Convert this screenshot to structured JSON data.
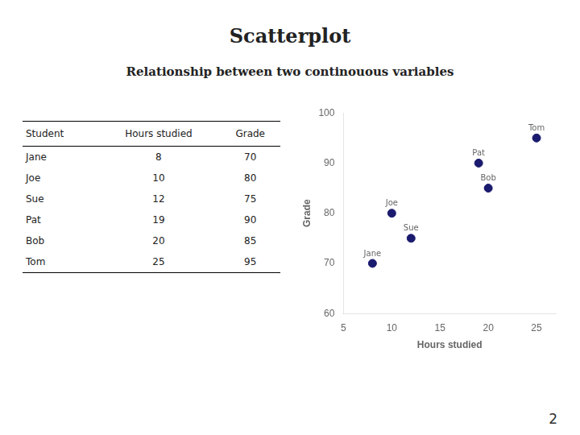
{
  "chart_data": {
    "type": "scatter",
    "title": "Scatterplot",
    "subtitle": "Relationship between two continouous variables",
    "x": [
      8,
      10,
      12,
      19,
      20,
      25
    ],
    "values": [
      70,
      80,
      75,
      90,
      85,
      95
    ],
    "labels": [
      "Jane",
      "Joe",
      "Sue",
      "Pat",
      "Bob",
      "Tom"
    ],
    "color": "#1a1a6e",
    "xlabel": "Hours studied",
    "ylabel": "Grade",
    "xlim": [
      5,
      27
    ],
    "ylim": [
      60,
      100
    ],
    "xticks": [
      5,
      10,
      15,
      20,
      25
    ],
    "yticks": [
      60,
      70,
      80,
      90,
      100
    ],
    "grid": false,
    "table_headers": [
      "Student",
      "Hours studied",
      "Grade"
    ],
    "slide_number": "2"
  }
}
